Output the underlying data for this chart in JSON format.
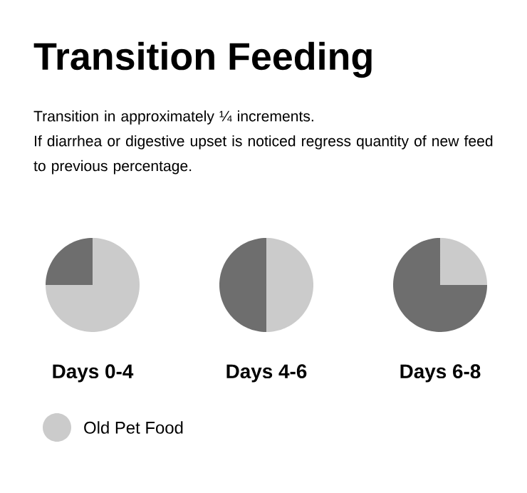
{
  "chart_data": [
    {
      "type": "pie",
      "title": "Transition Feeding",
      "subtitle": "Transition in approximately ¼ increments.\nIf diarrhea or digestive upset is noticed regress quantity of new feed to previous percentage.",
      "xlabel": "Days 0-4",
      "categories": [
        "Old Pet Food",
        null
      ],
      "values": [
        75,
        25
      ],
      "colors": [
        "#cbcbcb",
        "#6e6e6e"
      ],
      "legend": "bottom"
    },
    {
      "type": "pie",
      "xlabel": "Days 4-6",
      "categories": [
        null,
        null
      ],
      "values": [
        50,
        50
      ],
      "colors": [
        "#cbcbcb",
        "#6e6e6e"
      ]
    },
    {
      "type": "pie",
      "xlabel": "Days 6-8",
      "categories": [
        null,
        null
      ],
      "values": [
        25,
        75
      ],
      "colors": [
        "#cbcbcb",
        "#6e6e6e"
      ]
    }
  ]
}
